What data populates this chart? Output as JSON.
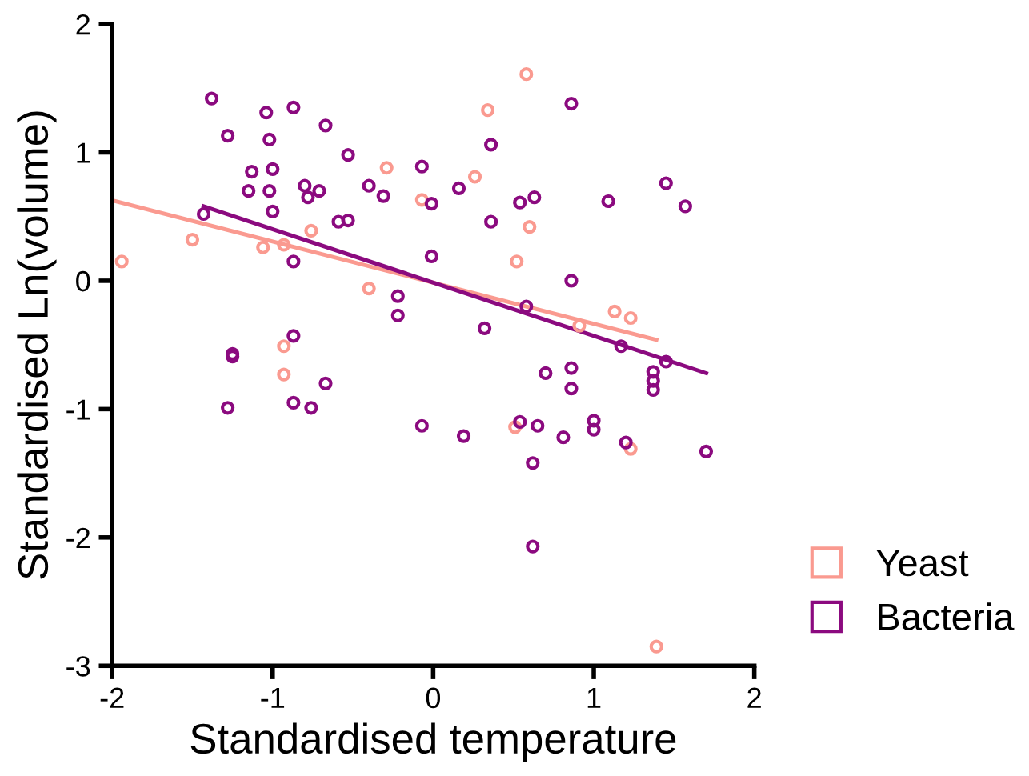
{
  "chart_data": {
    "type": "scatter",
    "xlabel": "Standardised temperature",
    "ylabel": "Standardised Ln(volume)",
    "xlim": [
      -2,
      2
    ],
    "xticks": [
      -2,
      -1,
      0,
      1,
      2
    ],
    "ylim": [
      -3,
      2
    ],
    "yticks": [
      2,
      1,
      0,
      -1,
      -2,
      -3
    ],
    "grid": false,
    "legend": "right",
    "series": [
      {
        "name": "Yeast",
        "color": "#fa9a90",
        "marker": "circle",
        "x": [
          -1.94,
          -1.5,
          -1.06,
          -0.93,
          -0.76,
          -0.4,
          -0.29,
          -0.07,
          0.26,
          0.34,
          0.58,
          0.6,
          0.52,
          0.91,
          1.13,
          1.23,
          -0.93,
          -0.93,
          0.51,
          1.23,
          1.39
        ],
        "values": [
          0.15,
          0.32,
          0.26,
          0.28,
          0.39,
          -0.06,
          0.88,
          0.63,
          0.81,
          1.33,
          1.61,
          0.42,
          0.15,
          -0.35,
          -0.24,
          -0.29,
          -0.51,
          -0.73,
          -1.14,
          -1.31,
          -2.85
        ]
      },
      {
        "name": "Bacteria",
        "color": "#8b0a7f",
        "marker": "circle",
        "x": [
          -1.38,
          -1.28,
          -1.04,
          -0.87,
          -1.02,
          -0.67,
          -0.53,
          -1.13,
          -1.0,
          -1.15,
          -1.02,
          -0.8,
          -0.78,
          -0.71,
          -0.4,
          -0.31,
          -0.07,
          -0.01,
          -1.0,
          -0.59,
          -0.53,
          -1.43,
          -0.87,
          -0.01,
          -0.22,
          -0.22,
          -0.87,
          0.86,
          0.36,
          0.16,
          0.54,
          0.63,
          1.09,
          1.45,
          1.57,
          0.36,
          0.86,
          0.58,
          0.32,
          -1.25,
          -1.25,
          -0.67,
          -0.87,
          -0.76,
          -1.28,
          -0.07,
          1.17,
          1.45,
          1.37,
          1.37,
          1.37,
          0.7,
          0.86,
          0.86,
          0.19,
          0.54,
          0.65,
          0.62,
          0.81,
          1.0,
          1.0,
          1.2,
          1.7,
          0.62
        ],
        "values": [
          1.42,
          1.13,
          1.31,
          1.35,
          1.1,
          1.21,
          0.98,
          0.85,
          0.87,
          0.7,
          0.7,
          0.74,
          0.65,
          0.7,
          0.74,
          0.66,
          0.89,
          0.6,
          0.54,
          0.46,
          0.47,
          0.52,
          0.15,
          0.19,
          -0.12,
          -0.27,
          -0.43,
          1.38,
          1.06,
          0.72,
          0.61,
          0.65,
          0.62,
          0.76,
          0.58,
          0.46,
          0.0,
          -0.2,
          -0.37,
          -0.57,
          -0.59,
          -0.8,
          -0.95,
          -0.99,
          -0.99,
          -1.13,
          -0.51,
          -0.63,
          -0.71,
          -0.78,
          -0.85,
          -0.72,
          -0.68,
          -0.84,
          -1.21,
          -1.1,
          -1.13,
          -1.42,
          -1.22,
          -1.09,
          -1.16,
          -1.26,
          -1.33,
          -2.07
        ]
      },
      {
        "type": "line",
        "color": "#fa9a90",
        "x": [
          -1.98,
          1.39
        ],
        "values": [
          0.62,
          -0.46
        ]
      },
      {
        "type": "line",
        "color": "#8b0a7f",
        "x": [
          -1.43,
          1.7
        ],
        "values": [
          0.58,
          -0.72
        ]
      }
    ]
  }
}
